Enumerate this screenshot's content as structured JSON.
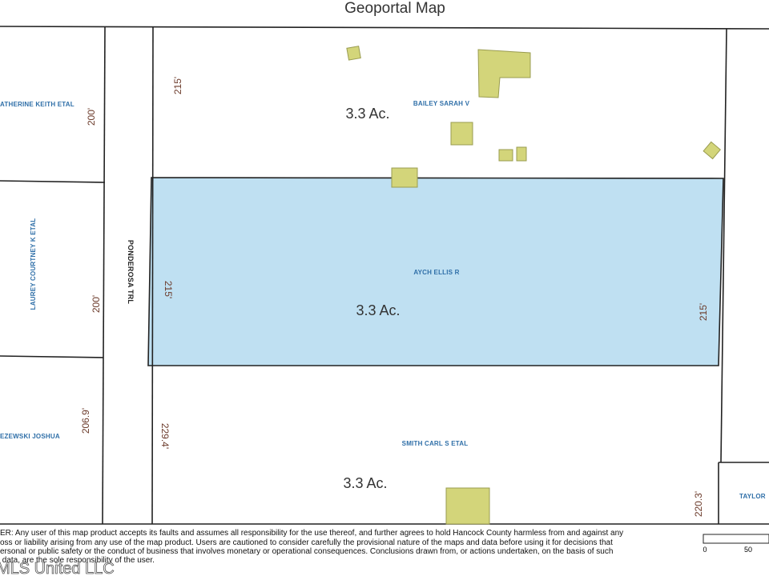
{
  "title": "Geoportal Map",
  "road": "PONDEROSA TRL",
  "parcels": [
    {
      "owner": "BAILEY SARAH V",
      "acreage": "3.3 Ac.",
      "dimension": "215'"
    },
    {
      "owner": "AYCH ELLIS R",
      "acreage": "3.3 Ac.",
      "dimension_left": "215'",
      "dimension_right": "215'"
    },
    {
      "owner": "SMITH CARL S ETAL",
      "acreage": "3.3 Ac.",
      "dimension_left": "229.4'",
      "dimension_right": "220.3'"
    }
  ],
  "neighbors": [
    {
      "owner": "ATHERINE KEITH ETAL",
      "dimension": "200'"
    },
    {
      "owner": "LAUREY COURTNEY K ETAL",
      "dimension": "200'"
    },
    {
      "owner": "EZEWSKI JOSHUA",
      "dimension": "206.9'"
    },
    {
      "owner": "TAYLOR"
    }
  ],
  "disclaimer": [
    "ER: Any user of this map product accepts its faults and assumes all responsibility for the use thereof, and further agrees to hold Hancock County harmless from and against any",
    "oss or liability arising from any use of the map product. Users are cautioned to consider carefully the provisional nature of the maps and data before using it for decisions that",
    "ersonal or public safety or the conduct of business that involves monetary or operational consequences. Conclusions drawn from, or actions undertaken, on the basis of such",
    " data, are the sole responsibility of the user."
  ],
  "scale": [
    "0",
    "50"
  ],
  "watermark": "MLS United LLC"
}
